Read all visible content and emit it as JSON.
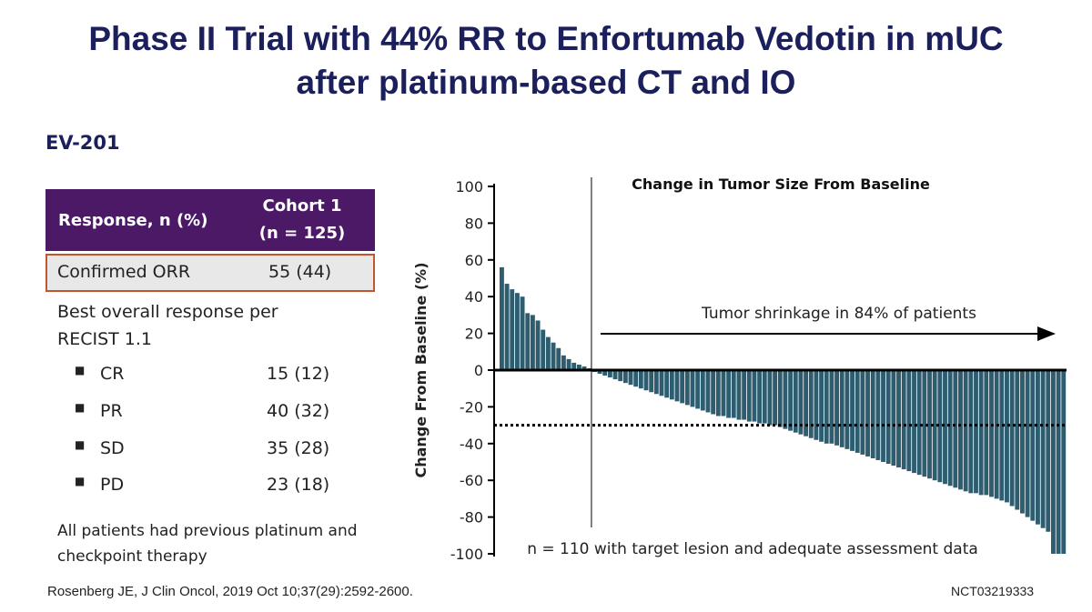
{
  "slide": {
    "title_lines": [
      "Phase II Trial with 44% RR to Enfortumab Vedotin in mUC",
      "after platinum-based CT and IO"
    ],
    "study": "EV-201",
    "table": {
      "header": [
        "Response, n (%)",
        "Cohort 1",
        "(n = 125)"
      ],
      "highlight_row": [
        "Confirmed ORR",
        "55 (44)"
      ],
      "subheading": "Best overall response per RECIST 1.1",
      "rows": [
        [
          "CR",
          "15 (12)"
        ],
        [
          "PR",
          "40 (32)"
        ],
        [
          "SD",
          "35 (28)"
        ],
        [
          "PD",
          "23 (18)"
        ]
      ]
    },
    "note": "All patients had previous platinum and checkpoint therapy",
    "citation": "Rosenberg JE, J Clin Oncol, 2019 Oct 10;37(29):2592-2600.",
    "trial_id": "NCT03219333"
  },
  "chart_data": {
    "type": "waterfall",
    "title": "Change in Tumor Size From Baseline",
    "y_label": "Change From Baseline (%)",
    "annotations": [
      "Tumor shrinkage in 84% of patients",
      "n = 110 with target lesion and adequate assessment data"
    ],
    "color": "#2f5d70",
    "ylim": [
      -100,
      100
    ],
    "yticks": [
      -100,
      -80,
      -60,
      -40,
      -20,
      0,
      20,
      40,
      60,
      80,
      100
    ],
    "reference_line": -30,
    "values": [
      56,
      47,
      44,
      42,
      40,
      31,
      30,
      27,
      22,
      18,
      15,
      12,
      8,
      6,
      4,
      3,
      2,
      1,
      -1,
      -2,
      -3,
      -4,
      -5,
      -6,
      -7,
      -8,
      -9,
      -10,
      -11,
      -12,
      -13,
      -14,
      -15,
      -16,
      -17,
      -18,
      -19,
      -20,
      -21,
      -22,
      -23,
      -24,
      -25,
      -25,
      -26,
      -26,
      -27,
      -27,
      -28,
      -28,
      -29,
      -29,
      -30,
      -30,
      -31,
      -32,
      -33,
      -34,
      -35,
      -36,
      -37,
      -38,
      -39,
      -40,
      -40,
      -41,
      -42,
      -43,
      -44,
      -45,
      -46,
      -47,
      -48,
      -49,
      -50,
      -51,
      -52,
      -53,
      -54,
      -55,
      -56,
      -57,
      -58,
      -59,
      -60,
      -61,
      -62,
      -63,
      -64,
      -65,
      -66,
      -67,
      -67,
      -68,
      -68,
      -69,
      -70,
      -71,
      -72,
      -74,
      -76,
      -78,
      -80,
      -82,
      -84,
      -86,
      -88,
      -100,
      -100,
      -100
    ]
  }
}
